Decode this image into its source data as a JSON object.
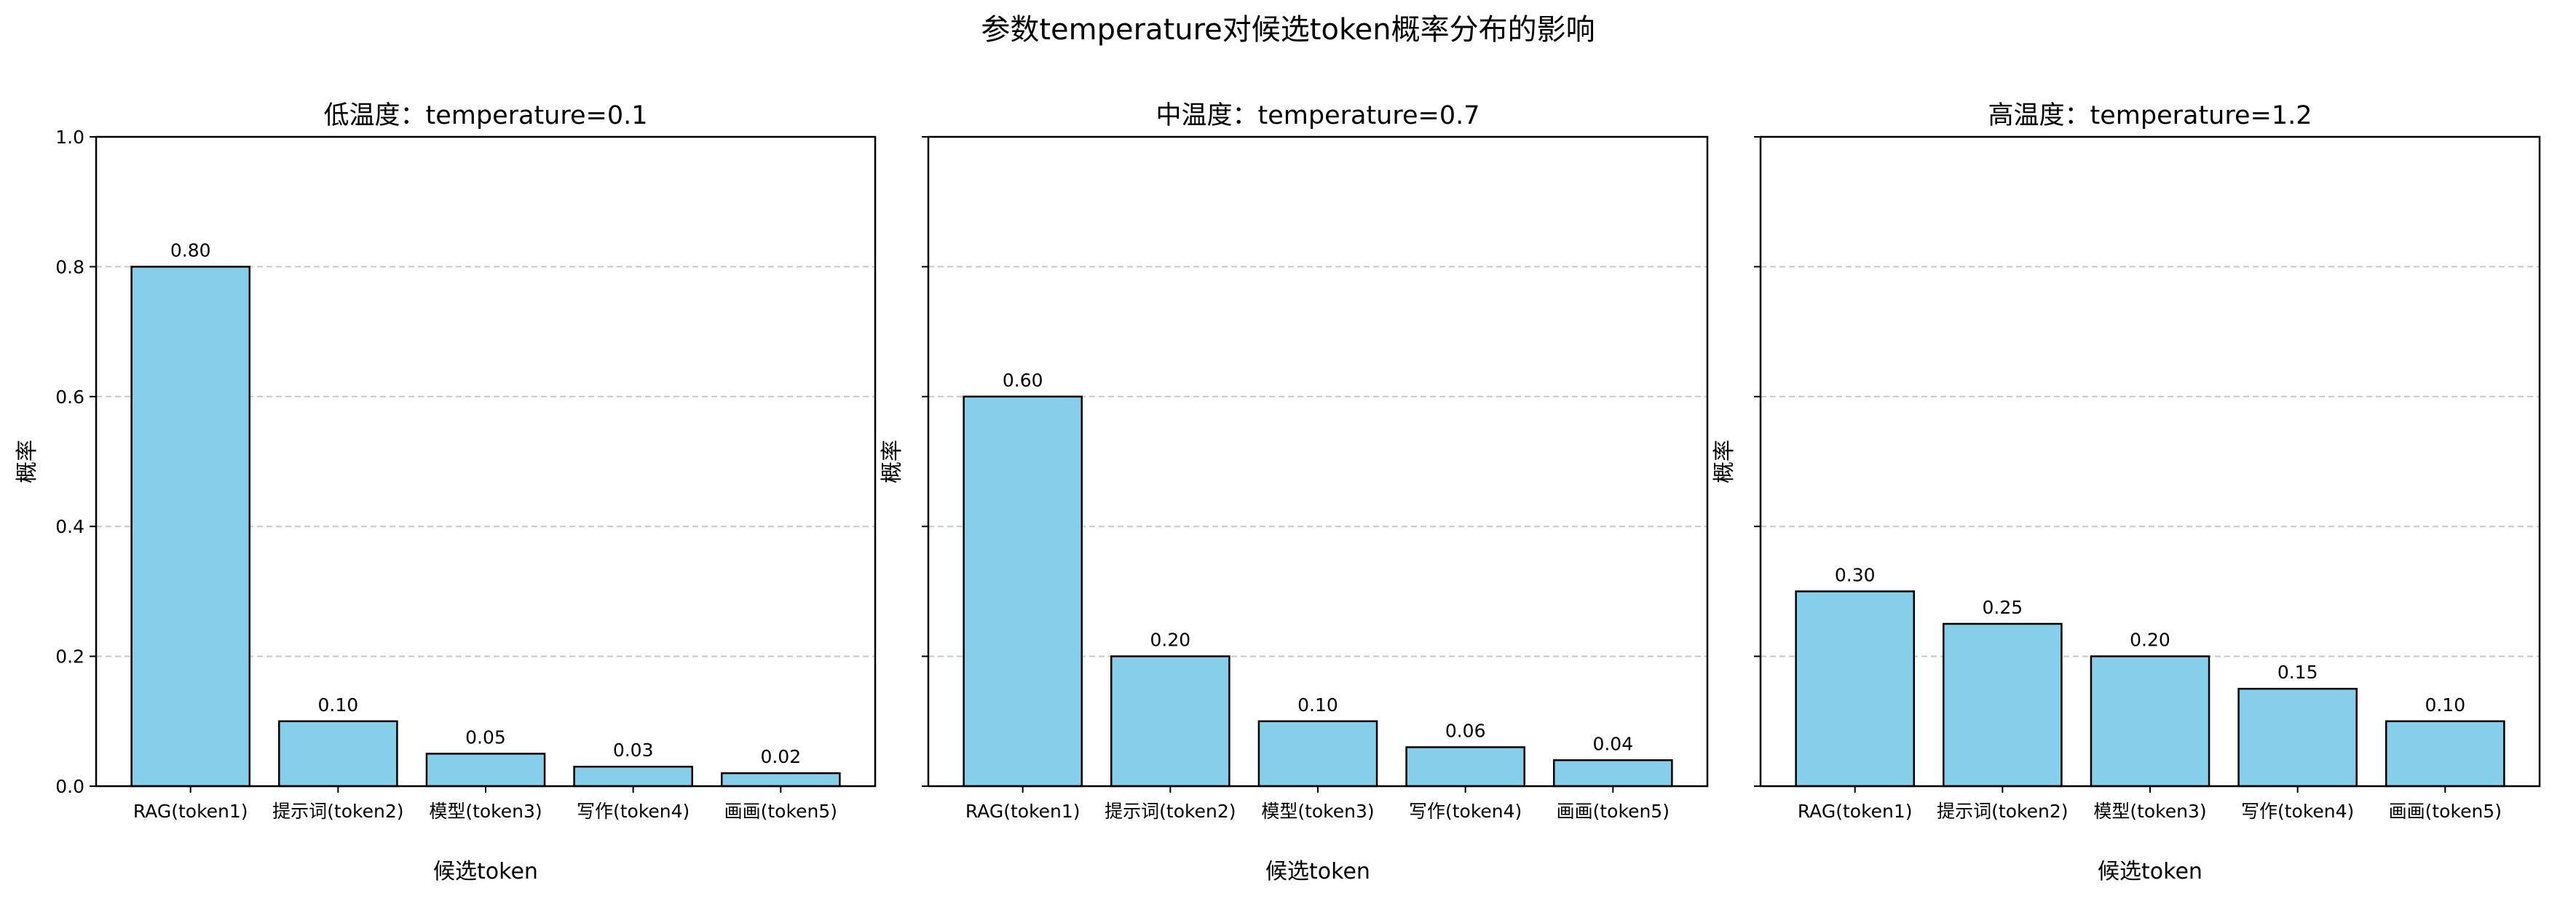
{
  "title": "参数temperature对候选token概率分布的影响",
  "chart_data": [
    {
      "type": "bar",
      "title": "低温度：temperature=0.1",
      "xlabel": "候选token",
      "ylabel": "概率",
      "categories": [
        "RAG(token1)",
        "提示词(token2)",
        "模型(token3)",
        "写作(token4)",
        "画画(token5)"
      ],
      "values": [
        0.8,
        0.1,
        0.05,
        0.03,
        0.02
      ],
      "data_labels": [
        "0.80",
        "0.10",
        "0.05",
        "0.03",
        "0.02"
      ],
      "ylim": [
        0,
        1.0
      ],
      "yticks": [
        "0.0",
        "0.2",
        "0.4",
        "0.6",
        "0.8",
        "1.0"
      ],
      "grid": "y-dashed",
      "bar_color": "#87CEEB",
      "edge_color": "#000000"
    },
    {
      "type": "bar",
      "title": "中温度：temperature=0.7",
      "xlabel": "候选token",
      "ylabel": "概率",
      "categories": [
        "RAG(token1)",
        "提示词(token2)",
        "模型(token3)",
        "写作(token4)",
        "画画(token5)"
      ],
      "values": [
        0.6,
        0.2,
        0.1,
        0.06,
        0.04
      ],
      "data_labels": [
        "0.60",
        "0.20",
        "0.10",
        "0.06",
        "0.04"
      ],
      "ylim": [
        0,
        1.0
      ],
      "yticks": [],
      "grid": "y-dashed",
      "bar_color": "#87CEEB",
      "edge_color": "#000000"
    },
    {
      "type": "bar",
      "title": "高温度：temperature=1.2",
      "xlabel": "候选token",
      "ylabel": "概率",
      "categories": [
        "RAG(token1)",
        "提示词(token2)",
        "模型(token3)",
        "写作(token4)",
        "画画(token5)"
      ],
      "values": [
        0.3,
        0.25,
        0.2,
        0.15,
        0.1
      ],
      "data_labels": [
        "0.30",
        "0.25",
        "0.20",
        "0.15",
        "0.10"
      ],
      "ylim": [
        0,
        1.0
      ],
      "yticks": [],
      "grid": "y-dashed",
      "bar_color": "#87CEEB",
      "edge_color": "#000000"
    }
  ]
}
